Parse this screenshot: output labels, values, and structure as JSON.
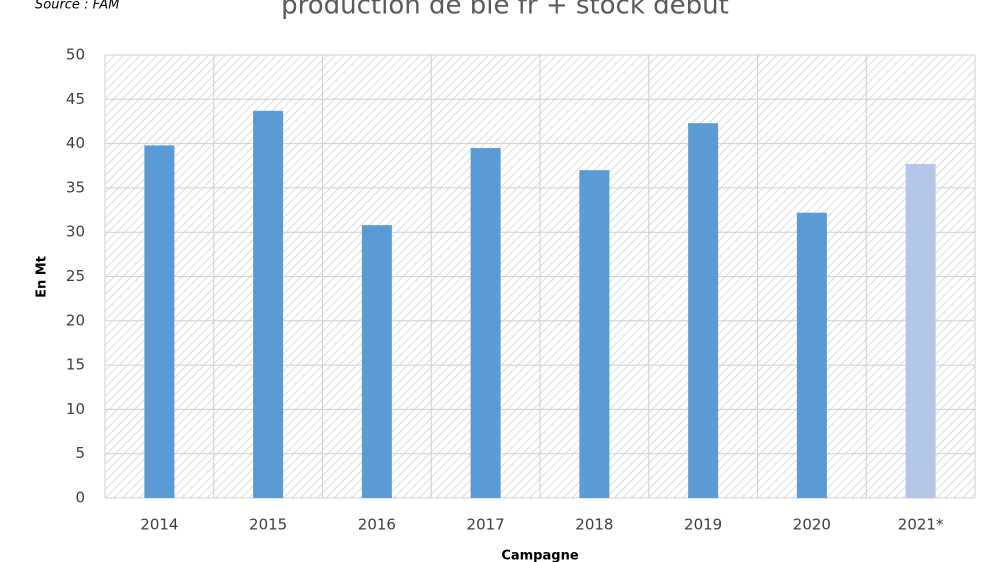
{
  "chart_data": {
    "type": "bar",
    "title": "production de blé fr + stock début",
    "source": "Source : FAM",
    "y_label": "En Mt",
    "x_label": "Campagne",
    "categories": [
      "2014",
      "2015",
      "2016",
      "2017",
      "2018",
      "2019",
      "2020",
      "2021*"
    ],
    "values": [
      39.8,
      43.7,
      30.8,
      39.5,
      37.0,
      42.3,
      32.2,
      37.7
    ],
    "colors": [
      "#5b9bd5",
      "#5b9bd5",
      "#5b9bd5",
      "#5b9bd5",
      "#5b9bd5",
      "#5b9bd5",
      "#5b9bd5",
      "#b4c7e7"
    ],
    "ylim": [
      0,
      50
    ],
    "yticks": [
      0,
      5,
      10,
      15,
      20,
      25,
      30,
      35,
      40,
      45,
      50
    ],
    "grid": true
  }
}
